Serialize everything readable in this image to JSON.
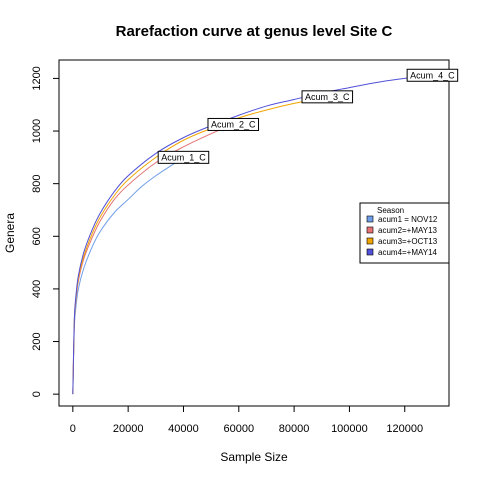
{
  "chart_data": {
    "type": "line",
    "title": "Rarefaction curve at genus level Site C",
    "xlabel": "Sample Size",
    "ylabel": "Genera",
    "xlim": [
      -5000,
      136000
    ],
    "ylim": [
      -45,
      1270
    ],
    "x_ticks": [
      0,
      20000,
      40000,
      60000,
      80000,
      100000,
      120000
    ],
    "y_ticks": [
      0,
      200,
      400,
      600,
      800,
      1000,
      1200
    ],
    "grid": false,
    "legend": {
      "title": "Season",
      "position": "right",
      "entries": [
        "acum1 = NOV12",
        "acum2=+MAY13",
        "acum3=+OCT13",
        "acum4=+MAY14"
      ]
    },
    "series": [
      {
        "name": "acum1 = NOV12",
        "label": "Acum_1_C",
        "color": "#6f9ee8",
        "x": [
          0,
          500,
          1000,
          2000,
          4000,
          7000,
          10000,
          15000,
          20000,
          25000,
          30000,
          35000,
          40000
        ],
        "y": [
          0,
          240,
          320,
          400,
          480,
          560,
          620,
          690,
          740,
          790,
          830,
          865,
          900
        ]
      },
      {
        "name": "acum2=+MAY13",
        "label": "Acum_2_C",
        "color": "#e57373",
        "x": [
          0,
          500,
          1000,
          2000,
          4000,
          7000,
          10000,
          15000,
          20000,
          30000,
          40000,
          50000,
          58000
        ],
        "y": [
          0,
          260,
          345,
          430,
          515,
          595,
          660,
          740,
          795,
          880,
          940,
          990,
          1025
        ]
      },
      {
        "name": "acum3=+OCT13",
        "label": "Acum_3_C",
        "color": "#f0a500",
        "x": [
          0,
          500,
          1000,
          2000,
          4000,
          7000,
          10000,
          15000,
          20000,
          30000,
          40000,
          50000,
          60000,
          70000,
          80000,
          92000
        ],
        "y": [
          0,
          265,
          350,
          440,
          525,
          610,
          675,
          755,
          815,
          900,
          965,
          1010,
          1050,
          1080,
          1105,
          1130
        ]
      },
      {
        "name": "acum4=+MAY14",
        "label": "Acum_4_C",
        "color": "#5050d8",
        "x": [
          0,
          500,
          1000,
          2000,
          4000,
          7000,
          10000,
          15000,
          20000,
          30000,
          40000,
          50000,
          60000,
          70000,
          80000,
          90000,
          100000,
          110000,
          120000,
          130000
        ],
        "y": [
          0,
          270,
          360,
          450,
          540,
          625,
          690,
          770,
          830,
          915,
          975,
          1020,
          1060,
          1095,
          1120,
          1145,
          1165,
          1185,
          1200,
          1212
        ]
      }
    ]
  }
}
